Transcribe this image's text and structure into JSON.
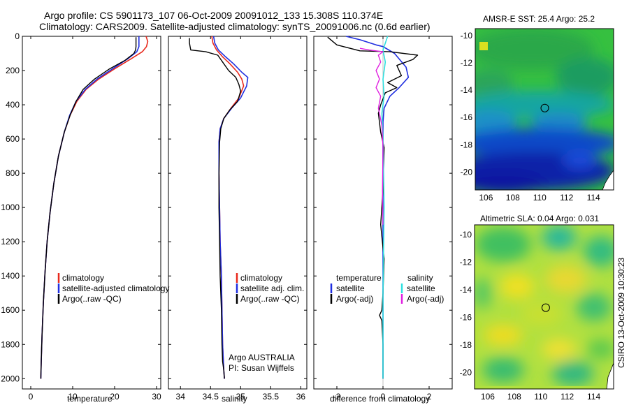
{
  "figure": {
    "title_line1": "Argo profile: CS 5901173_107 06-Oct-2009 20091012_133 15.308S 110.374E",
    "title_line2": "Climatology: CARS2009. Satellite-adjusted climatology: synTS_20091006.nc (0.6d earlier)",
    "side_text": "CSIRO 13-Oct-2009 10:30:23",
    "colors": {
      "red": "#e8291c",
      "blue": "#1f2ee0",
      "black": "#000000",
      "cyan": "#2fe0e0",
      "magenta": "#e020e0"
    }
  },
  "chart_data": [
    {
      "type": "line",
      "id": "temperature",
      "xlabel": "temperature",
      "ylabel": "",
      "xlim": [
        -2,
        31
      ],
      "ylim": [
        2060,
        0
      ],
      "xticks": [
        0,
        10,
        20,
        30
      ],
      "yticks": [
        0,
        200,
        400,
        600,
        800,
        1000,
        1200,
        1400,
        1600,
        1800,
        2000
      ],
      "legend_labels": [
        "climatology",
        "satellite-adjusted climatology",
        "Argo(..raw -QC)"
      ],
      "series": [
        {
          "name": "climatology",
          "color": "red",
          "width": 1.6,
          "x": [
            27.5,
            27.9,
            27.6,
            26.6,
            24.0,
            20.0,
            16.2,
            13.2,
            11.0,
            9.4,
            8.0,
            6.6,
            5.5,
            4.6,
            3.9,
            3.4,
            3.0,
            2.7,
            2.5,
            2.4
          ],
          "y": [
            0,
            30,
            60,
            90,
            130,
            190,
            250,
            310,
            380,
            460,
            560,
            700,
            860,
            1030,
            1200,
            1380,
            1560,
            1740,
            1900,
            2000
          ]
        },
        {
          "name": "satellite-adjusted climatology",
          "color": "blue",
          "width": 1.6,
          "x": [
            25.8,
            25.8,
            25.8,
            25.3,
            23.2,
            19.5,
            15.8,
            13.0,
            10.8,
            9.3,
            8.0,
            6.6,
            5.5,
            4.6,
            3.9,
            3.4,
            3.0,
            2.7,
            2.5,
            2.4
          ],
          "y": [
            0,
            30,
            60,
            90,
            130,
            190,
            250,
            310,
            380,
            460,
            560,
            700,
            860,
            1030,
            1200,
            1380,
            1560,
            1740,
            1900,
            2000
          ]
        },
        {
          "name": "Argo(..raw -QC)",
          "color": "black",
          "width": 1.4,
          "x": [
            25.1,
            25.1,
            25.1,
            25.0,
            24.6,
            22.5,
            18.8,
            15.2,
            12.5,
            10.8,
            9.4,
            8.0,
            6.6,
            5.5,
            4.6,
            3.9,
            3.4,
            3.0,
            2.7,
            2.5,
            2.4
          ],
          "y": [
            5,
            30,
            60,
            80,
            100,
            140,
            190,
            250,
            310,
            380,
            460,
            560,
            700,
            860,
            1030,
            1200,
            1380,
            1560,
            1740,
            1900,
            2000
          ]
        }
      ]
    },
    {
      "type": "line",
      "id": "salinity",
      "xlabel": "salinity",
      "ylabel": "",
      "xlim": [
        33.8,
        36.1
      ],
      "ylim": [
        2060,
        0
      ],
      "xticks": [
        34,
        34.5,
        35,
        35.5,
        36
      ],
      "yticks": [],
      "legend_labels": [
        "climatology",
        "satellite adj. clim.",
        "Argo(..raw -QC)"
      ],
      "annotations": [
        "Argo AUSTRALIA",
        "PI: Susan Wijffels"
      ],
      "series": [
        {
          "name": "climatology",
          "color": "red",
          "width": 1.6,
          "x": [
            34.52,
            34.54,
            34.6,
            34.7,
            34.82,
            34.95,
            35.02,
            35.05,
            34.97,
            34.84,
            34.72,
            34.66,
            34.64,
            34.64,
            34.65,
            34.66,
            34.68,
            34.69,
            34.7,
            34.72,
            34.73
          ],
          "y": [
            0,
            40,
            80,
            120,
            160,
            210,
            250,
            290,
            360,
            420,
            480,
            540,
            620,
            800,
            1000,
            1200,
            1400,
            1600,
            1800,
            1950,
            2000
          ]
        },
        {
          "name": "satellite adj. clim.",
          "color": "blue",
          "width": 1.6,
          "x": [
            34.55,
            34.57,
            34.63,
            34.75,
            34.88,
            35.02,
            35.12,
            35.1,
            35.0,
            34.85,
            34.72,
            34.66,
            34.64,
            34.64,
            34.65,
            34.66,
            34.68,
            34.69,
            34.7,
            34.72,
            34.73
          ],
          "y": [
            0,
            40,
            80,
            120,
            160,
            210,
            240,
            290,
            360,
            420,
            480,
            540,
            620,
            800,
            1000,
            1200,
            1400,
            1600,
            1800,
            1950,
            2000
          ]
        },
        {
          "name": "Argo(..raw -QC)",
          "color": "black",
          "width": 1.4,
          "x": [
            34.15,
            34.15,
            34.17,
            34.42,
            34.62,
            34.7,
            34.8,
            34.92,
            34.97,
            35.0,
            34.95,
            34.82,
            34.72,
            34.67,
            34.65,
            34.64,
            34.64,
            34.65,
            34.66,
            34.68,
            34.69,
            34.7,
            34.72,
            34.73
          ],
          "y": [
            10,
            40,
            80,
            90,
            110,
            150,
            200,
            240,
            280,
            320,
            380,
            430,
            480,
            540,
            620,
            800,
            1000,
            1200,
            1400,
            1600,
            1800,
            1900,
            1950,
            2000
          ]
        }
      ]
    },
    {
      "type": "line",
      "id": "difference",
      "xlabel": "difference from climatology",
      "ylabel": "",
      "xlim": [
        -3.0,
        3.0
      ],
      "ylim": [
        2060,
        0
      ],
      "xticks": [
        -2,
        0,
        2
      ],
      "yticks": [],
      "legend_title_left": "temperature",
      "legend_title_right": "salinity",
      "legend_labels_left": [
        "satellite",
        "Argo(-adj)"
      ],
      "legend_labels_right": [
        "satellite",
        "Argo(-adj)"
      ],
      "series": [
        {
          "name": "temperature satellite",
          "color": "blue",
          "width": 1.6,
          "x": [
            -1.6,
            -1.0,
            -0.3,
            0.0,
            0.5,
            1.0,
            1.1,
            0.7,
            0.3,
            0.05,
            0.0,
            0.0,
            0.0,
            0.0,
            0.0
          ],
          "y": [
            0,
            20,
            50,
            60,
            100,
            180,
            240,
            300,
            350,
            420,
            500,
            700,
            1000,
            1500,
            2000
          ]
        },
        {
          "name": "temperature Argo(-adj)",
          "color": "black",
          "width": 1.4,
          "x": [
            -2.4,
            -2.0,
            -1.0,
            0.3,
            1.5,
            1.3,
            0.6,
            0.8,
            0.2,
            0.6,
            0.1,
            -0.1,
            -0.2,
            -0.1,
            0.05,
            0.0,
            -0.1,
            0.05,
            0.0,
            -0.05,
            -0.15,
            -0.05,
            0.0,
            0.0
          ],
          "y": [
            5,
            50,
            85,
            90,
            110,
            135,
            170,
            230,
            270,
            300,
            330,
            400,
            450,
            560,
            650,
            900,
            1100,
            1300,
            1500,
            1600,
            1630,
            1660,
            1800,
            2000
          ]
        },
        {
          "name": "salinity satellite",
          "color": "cyan",
          "width": 1.6,
          "x": [
            0.2,
            0.0,
            0.1,
            0.0,
            0.05,
            -0.05,
            0.0,
            0.05,
            0.0,
            0.0,
            0.0
          ],
          "y": [
            0,
            80,
            150,
            250,
            350,
            450,
            600,
            1000,
            1500,
            1900,
            2000
          ]
        },
        {
          "name": "salinity Argo(-adj)",
          "color": "magenta",
          "width": 1.4,
          "x": [
            -1.0,
            -0.6,
            0.0,
            -0.2,
            -0.1,
            -0.3,
            -0.15,
            -0.3,
            -0.1,
            -0.2,
            -0.05,
            0.0,
            -0.02,
            0.0
          ],
          "y": [
            70,
            80,
            90,
            110,
            150,
            200,
            250,
            300,
            350,
            420,
            520,
            650,
            900,
            1100
          ]
        }
      ]
    },
    {
      "type": "heatmap",
      "id": "sst_map",
      "title": "AMSR-E SST: 25.4 Argo: 25.2",
      "xlim": [
        105.2,
        115.5
      ],
      "ylim": [
        -21.3,
        -9.5
      ],
      "xticks": [
        106,
        108,
        110,
        112,
        114
      ],
      "yticks": [
        -10,
        -12,
        -14,
        -16,
        -18,
        -20
      ],
      "marker": {
        "x": 110.374,
        "y": -15.308
      }
    },
    {
      "type": "heatmap",
      "id": "sla_map",
      "title": "Altimetric SLA: 0.04 Argo: 0.031",
      "xlim": [
        105.0,
        115.5
      ],
      "ylim": [
        -21.2,
        -9.3
      ],
      "xticks": [
        106,
        108,
        110,
        112,
        114
      ],
      "yticks": [
        -10,
        -12,
        -14,
        -16,
        -18,
        -20
      ],
      "marker": {
        "x": 110.374,
        "y": -15.308
      }
    }
  ]
}
